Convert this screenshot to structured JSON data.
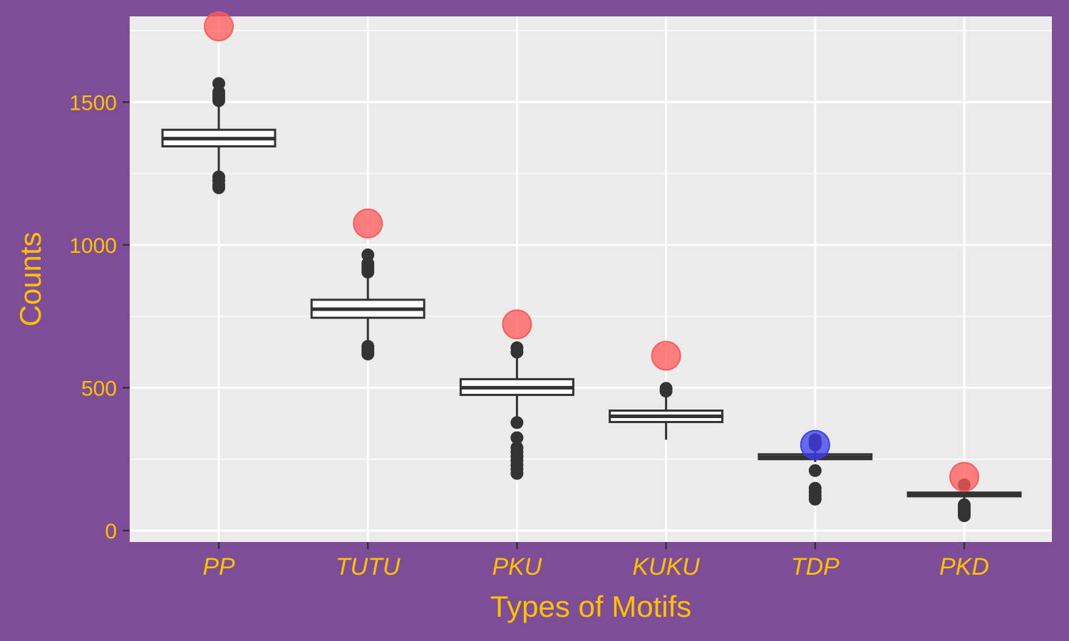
{
  "chart_data": {
    "type": "boxplot",
    "title": "",
    "xlabel": "Types of Motifs",
    "ylabel": "Counts",
    "ylim": [
      -40,
      1800
    ],
    "yticks": [
      0,
      500,
      1000,
      1500
    ],
    "grid": true,
    "colors": {
      "page_background": "#7e4d97",
      "panel_background": "#ebebeb",
      "grid": "#ffffff",
      "box_line": "#333333",
      "text": "#ffc000",
      "observed_high": "#ff5a5a",
      "observed_low": "#3c3cf0"
    },
    "categories": [
      "PP",
      "TUTU",
      "PKU",
      "KUKU",
      "TDP",
      "PKD"
    ],
    "boxes": [
      {
        "category": "PP",
        "whisker_low": 1255,
        "q1": 1345,
        "median": 1372,
        "q3": 1403,
        "whisker_high": 1485,
        "outliers": [
          1200,
          1210,
          1225,
          1238,
          1505,
          1515,
          1525,
          1535,
          1565
        ]
      },
      {
        "category": "TUTU",
        "whisker_low": 665,
        "q1": 745,
        "median": 775,
        "q3": 808,
        "whisker_high": 890,
        "outliers": [
          618,
          625,
          635,
          645,
          905,
          915,
          925,
          935,
          965
        ]
      },
      {
        "category": "PKU",
        "whisker_low": 400,
        "q1": 475,
        "median": 500,
        "q3": 530,
        "whisker_high": 610,
        "outliers": [
          200,
          215,
          230,
          245,
          260,
          275,
          290,
          325,
          378,
          625,
          640
        ]
      },
      {
        "category": "KUKU",
        "whisker_low": 318,
        "q1": 380,
        "median": 400,
        "q3": 420,
        "whisker_high": 470,
        "outliers": [
          488,
          498
        ]
      },
      {
        "category": "TDP",
        "whisker_low": 240,
        "q1": 250,
        "median": 257,
        "q3": 267,
        "whisker_high": 285,
        "outliers": [
          110,
          122,
          135,
          148,
          210,
          300,
          310,
          318
        ]
      },
      {
        "category": "PKD",
        "whisker_low": 112,
        "q1": 120,
        "median": 127,
        "q3": 133,
        "whisker_high": 150,
        "outliers": [
          52,
          62,
          72,
          82,
          90,
          160
        ]
      }
    ],
    "observed": [
      {
        "category": "PP",
        "value": 1765,
        "color": "#ff5a5a"
      },
      {
        "category": "TUTU",
        "value": 1075,
        "color": "#ff5a5a"
      },
      {
        "category": "PKU",
        "value": 722,
        "color": "#ff5a5a"
      },
      {
        "category": "KUKU",
        "value": 612,
        "color": "#ff5a5a"
      },
      {
        "category": "TDP",
        "value": 300,
        "color": "#3c3cf0"
      },
      {
        "category": "PKD",
        "value": 188,
        "color": "#ff5a5a"
      }
    ]
  }
}
